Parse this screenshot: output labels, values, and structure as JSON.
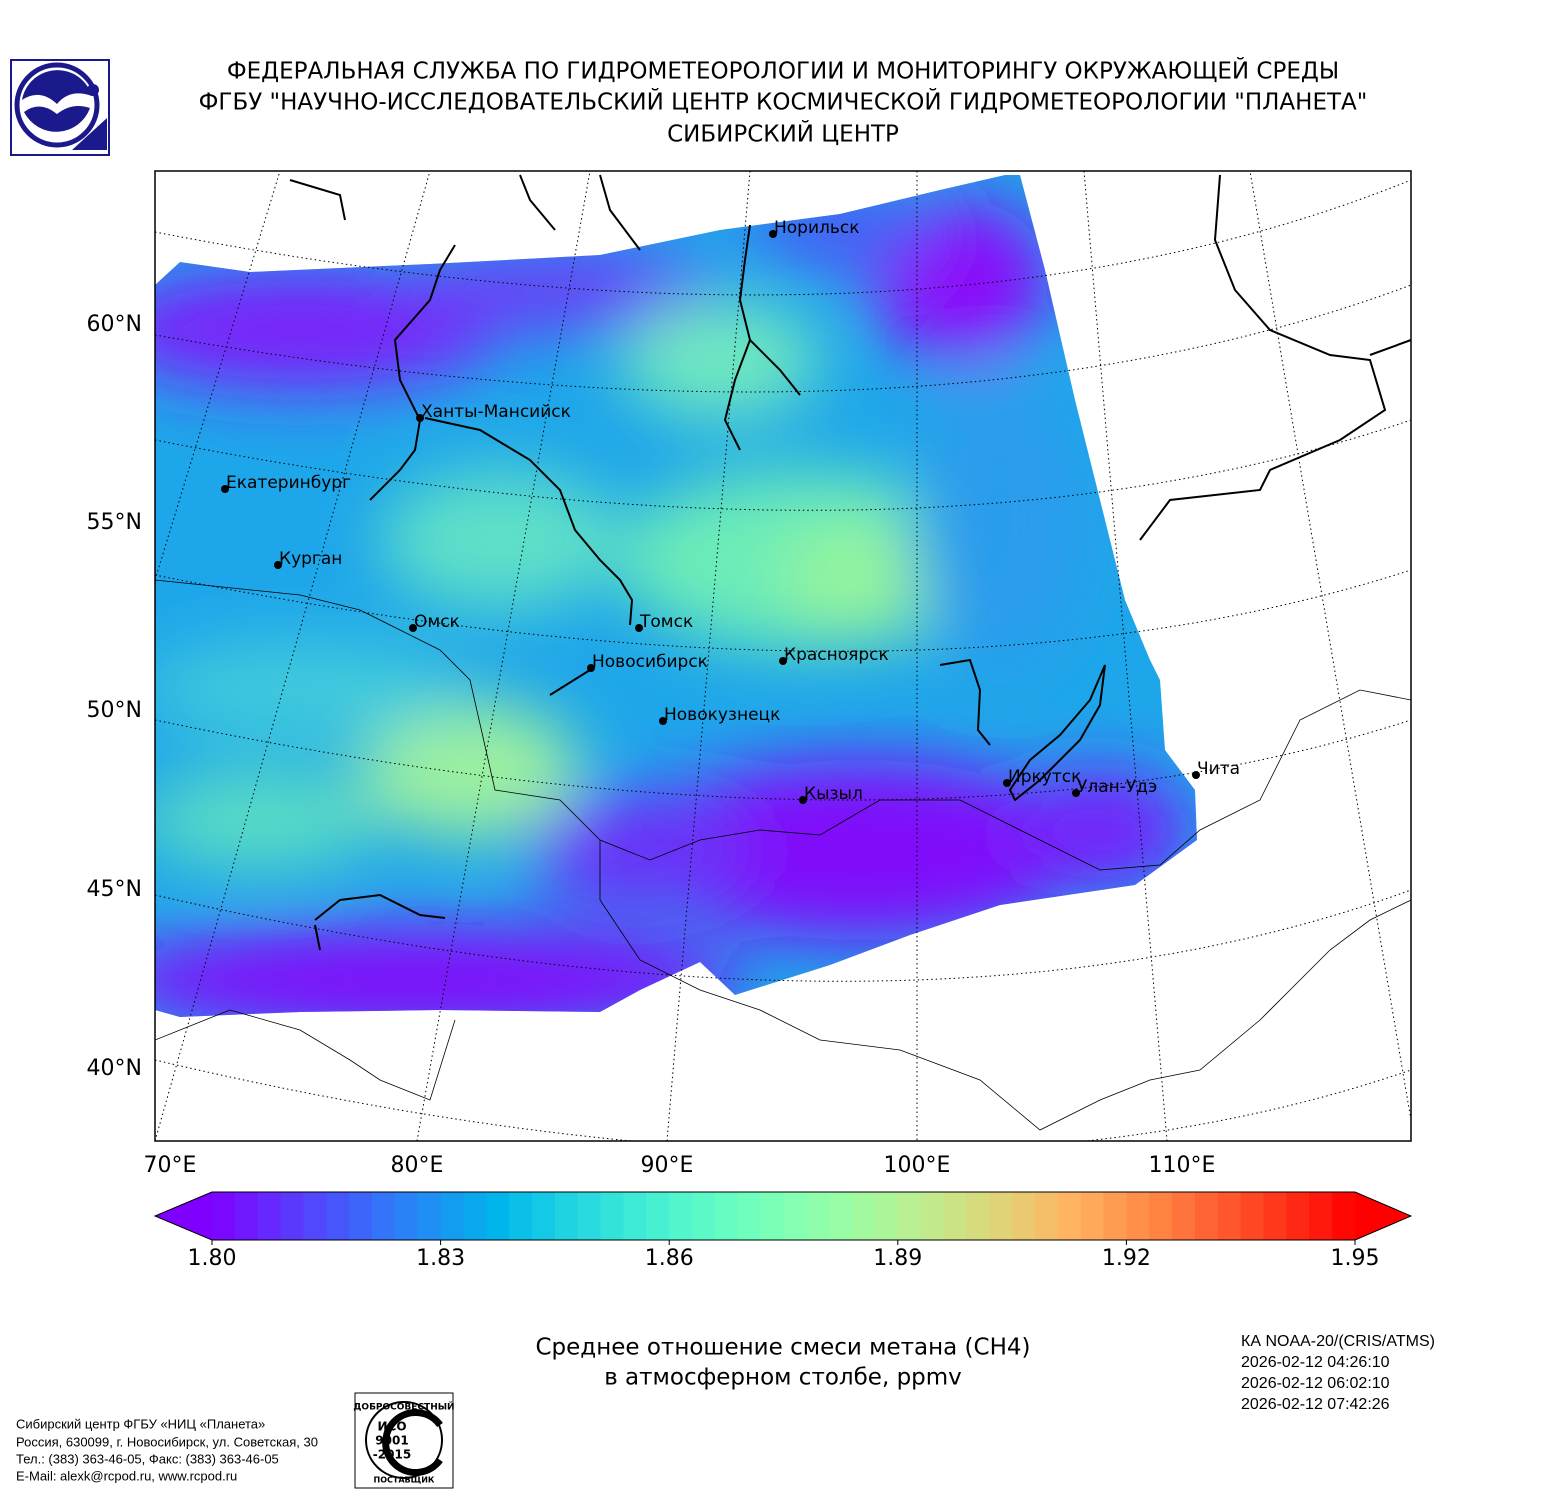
{
  "header": {
    "lines": [
      "ФЕДЕРАЛЬНАЯ СЛУЖБА ПО ГИДРОМЕТЕОРОЛОГИИ И МОНИТОРИНГУ ОКРУЖАЮЩЕЙ СРЕДЫ",
      "ФГБУ \"НАУЧНО-ИССЛЕДОВАТЕЛЬСКИЙ ЦЕНТР КОСМИЧЕСКОЙ ГИДРОМЕТЕОРОЛОГИИ \"ПЛАНЕТА\"",
      "СИБИРСКИЙ ЦЕНТР"
    ]
  },
  "map": {
    "type": "map",
    "lat_ticks": [
      {
        "value": 60,
        "label": "60°N"
      },
      {
        "value": 55,
        "label": "55°N"
      },
      {
        "value": 50,
        "label": "50°N"
      },
      {
        "value": 45,
        "label": "45°N"
      },
      {
        "value": 40,
        "label": "40°N"
      }
    ],
    "lon_ticks": [
      {
        "value": 70,
        "label": "70°E"
      },
      {
        "value": 80,
        "label": "80°E"
      },
      {
        "value": 90,
        "label": "90°E"
      },
      {
        "value": 100,
        "label": "100°E"
      },
      {
        "value": 110,
        "label": "110°E"
      }
    ],
    "cities": [
      "Норильск",
      "Ханты-Мансийск",
      "Екатеринбург",
      "Курган",
      "Омск",
      "Томск",
      "Новосибирск",
      "Красноярск",
      "Новокузнецк",
      "Кызыл",
      "Иркутск",
      "Улан-Удэ",
      "Чита"
    ],
    "colorbar": {
      "colormap": "rainbow",
      "extend": "both",
      "clim": [
        1.8,
        1.95
      ],
      "ticks": [
        {
          "value": 1.8,
          "label": "1.80"
        },
        {
          "value": 1.83,
          "label": "1.83"
        },
        {
          "value": 1.86,
          "label": "1.86"
        },
        {
          "value": 1.89,
          "label": "1.89"
        },
        {
          "value": 1.92,
          "label": "1.92"
        },
        {
          "value": 1.95,
          "label": "1.95"
        }
      ]
    },
    "title": [
      "Среднее отношение смеси метана (CH4)",
      "в атмосферном столбе, ppmv"
    ]
  },
  "satellite": {
    "instrument": "КА NOAA-20/(CRIS/ATMS)",
    "times": [
      "2026-02-12 04:26:10",
      "2026-02-12 06:02:10",
      "2026-02-12 07:42:26"
    ]
  },
  "footer": {
    "lines": [
      "Сибирский центр ФГБУ «НИЦ «Планета»",
      "Россия, 630099, г. Новосибирск, ул. Советская, 30",
      "Тел.: (383) 363-46-05, Факс: (383) 363-46-05",
      "E-Mail: alexk@rcpod.ru, www.rcpod.ru"
    ]
  },
  "cert": {
    "top": "ДОБРОСОВЕСТНЫЙ",
    "mark": [
      "ИСО",
      "9001",
      "-2015"
    ],
    "bottom": "ПОСТАВЩИК"
  }
}
